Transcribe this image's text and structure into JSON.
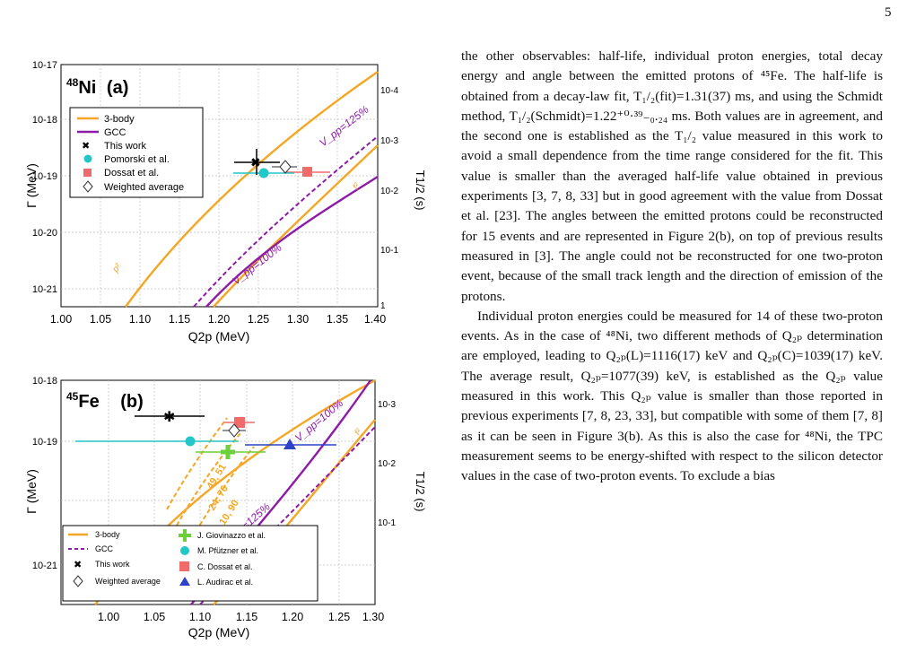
{
  "page": {
    "number": "5"
  },
  "figure_a": {
    "panel_label": "(a)",
    "nucleus_mass": "48",
    "nucleus_symbol": "Ni",
    "ylabel": "Γ (MeV)",
    "xlabel": "Q2p (MeV)",
    "right_label": "T1/2 (s)",
    "xticks": [
      "1.00",
      "1.05",
      "1.10",
      "1.15",
      "1.20",
      "1.25",
      "1.30",
      "1.35",
      "1.40"
    ],
    "yticks": [
      "10-17",
      "10-18",
      "10-19",
      "10-20",
      "10-21"
    ],
    "rticks": [
      "10-4",
      "10-3",
      "10-2",
      "10-1",
      "1"
    ],
    "legend": [
      "3-body",
      "GCC",
      "This work",
      "Pomorski et al.",
      "Dossat et al.",
      "Weighted average"
    ],
    "curve_labels": [
      "V_pp=125%",
      "V_pp=100%",
      "p²",
      "f²"
    ]
  },
  "figure_b": {
    "panel_label": "(b)",
    "nucleus_mass": "45",
    "nucleus_symbol": "Fe",
    "ylabel": "Γ (MeV)",
    "xlabel": "Q2p (MeV)",
    "right_label": "T1/2 (s)",
    "xticks": [
      "1.00",
      "1.05",
      "1.10",
      "1.15",
      "1.20",
      "1.25",
      "1.30"
    ],
    "yticks": [
      "10-18",
      "10-19",
      "10-21"
    ],
    "rticks": [
      "10-3",
      "10-2",
      "10-1"
    ],
    "legend_left": [
      "3-body",
      "GCC",
      "This work",
      "Weighted average"
    ],
    "legend_right": [
      "J. Giovinazzo et al.",
      "M. Pfützner et al.",
      "C. Dossat et al.",
      "L. Audirac et al."
    ],
    "curve_labels": [
      "V_pp=100%",
      "V_pp=125%",
      "p²",
      "f²",
      "49, 51",
      "24, 76",
      "10, 90"
    ]
  },
  "chart_data": [
    {
      "type": "scatter",
      "title": "48Ni (a)",
      "xlabel": "Q2p (MeV)",
      "ylabel": "Γ (MeV)",
      "xlim": [
        1.0,
        1.44
      ],
      "ylim_log10": [
        -21.3,
        -17
      ],
      "scale": "log-y",
      "series": [
        {
          "name": "This work",
          "x": [
            1.28
          ],
          "y": [
            1.8e-19
          ],
          "xerr": 0.03,
          "color": "#000000"
        },
        {
          "name": "Pomorski et al.",
          "x": [
            1.29
          ],
          "y": [
            1.1e-19
          ],
          "xerr": 0.04,
          "color": "#22c7c7"
        },
        {
          "name": "Dossat et al.",
          "x": [
            1.35
          ],
          "y": [
            1.1e-19
          ],
          "xerr": 0.06,
          "color": "#f26b6b"
        },
        {
          "name": "Weighted average",
          "x": [
            1.32
          ],
          "y": [
            1.5e-19
          ],
          "xerr": 0.02,
          "color": "#555555"
        }
      ],
      "legend_position": "top-left"
    },
    {
      "type": "scatter",
      "title": "45Fe (b)",
      "xlabel": "Q2p (MeV)",
      "ylabel": "Γ (MeV)",
      "xlim": [
        0.96,
        1.3
      ],
      "ylim_log10": [
        -21.3,
        -18
      ],
      "scale": "log-y",
      "series": [
        {
          "name": "This work",
          "x": [
            1.077
          ],
          "y": [
            3.8e-19
          ],
          "xerr": 0.039,
          "color": "#000000"
        },
        {
          "name": "J. Giovinazzo et al.",
          "x": [
            1.154
          ],
          "y": [
            5.5e-20
          ],
          "xerr": 0.016,
          "color": "#6dcf3a"
        },
        {
          "name": "M. Pfützner et al.",
          "x": [
            1.1
          ],
          "y": [
            1e-19
          ],
          "xerr": 0.1,
          "color": "#22c7c7"
        },
        {
          "name": "C. Dossat et al.",
          "x": [
            1.154
          ],
          "y": [
            2.2e-19
          ],
          "xerr": 0.016,
          "color": "#f26b6b"
        },
        {
          "name": "L. Audirac et al.",
          "x": [
            1.21
          ],
          "y": [
            8e-20
          ],
          "xerr": 0.05,
          "color": "#2c43c9"
        },
        {
          "name": "Weighted average",
          "x": [
            1.151
          ],
          "y": [
            1.6e-19
          ],
          "xerr": 0.015,
          "color": "#555555"
        }
      ],
      "legend_position": "bottom"
    }
  ],
  "text": {
    "p1": "the other observables: half-life, individual proton energies, total decay energy and angle between the emitted protons of ⁴⁵Fe. The half-life is obtained from a decay-law fit, T₁/₂(fit)=1.31(37) ms, and using the Schmidt method, T₁/₂(Schmidt)=1.22⁺⁰·³⁹₋₀.₂₄ ms. Both values are in agreement, and the second one is established as the T₁/₂ value measured in this work to avoid a small dependence from the time range considered for the fit. This value is smaller than the averaged half-life value obtained in previous experiments [3, 7, 8, 33] but in good agreement with the value from Dossat et al. [23]. The angles between the emitted protons could be reconstructed for 15 events and are represented in Figure 2(b), on top of previous results measured in [3]. The angle could not be reconstructed for one two-proton event, because of the small track length and the direction of emission of the protons.",
    "p2": "Individual proton energies could be measured for 14 of these two-proton events. As in the case of ⁴⁸Ni, two different methods of Q₂ₚ determination are employed, leading to Q₂ₚ(L)=1116(17) keV and Q₂ₚ(C)=1039(17) keV. The average result, Q₂ₚ=1077(39) keV, is established as the Q₂ₚ value measured in this work. This Q₂ₚ value is smaller than those reported in previous experiments [7, 8, 23, 33], but compatible with some of them [7, 8] as it can be seen in Figure 3(b). As this is also the case for ⁴⁸Ni, the TPC measurement seems to be energy-shifted with respect to the silicon detector values in the case of two-proton events. To exclude a bias"
  }
}
